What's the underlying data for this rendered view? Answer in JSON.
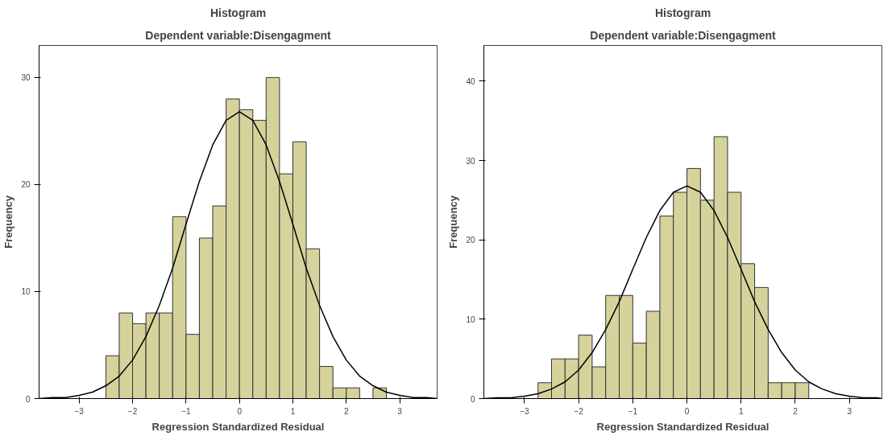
{
  "chart_data": [
    {
      "type": "histogram",
      "title": "Histogram",
      "subtitle": "Dependent variable:Disengagment",
      "xlabel": "Regression Standardized Residual",
      "ylabel": "Frequency",
      "color": "#d6d29c",
      "bins": [
        -2.5,
        -2.25,
        -2.0,
        -1.75,
        -1.5,
        -1.25,
        -1.0,
        -0.75,
        -0.5,
        -0.25,
        0.0,
        0.25,
        0.5,
        0.75,
        1.0,
        1.25,
        1.5,
        1.75,
        2.0,
        2.25,
        2.5,
        2.75
      ],
      "values": [
        4,
        8,
        7,
        8,
        8,
        17,
        6,
        15,
        18,
        28,
        27,
        26,
        30,
        21,
        24,
        14,
        3,
        1,
        1,
        0,
        1
      ],
      "series": [
        {
          "type": "line",
          "color": "#000000",
          "x": [
            -3.75,
            -3.5,
            -3.25,
            -3.0,
            -2.75,
            -2.5,
            -2.25,
            -2.0,
            -1.75,
            -1.5,
            -1.25,
            -1.0,
            -0.75,
            -0.5,
            -0.25,
            0.0,
            0.25,
            0.5,
            0.75,
            1.0,
            1.25,
            1.5,
            1.75,
            2.0,
            2.25,
            2.5,
            2.75,
            3.0,
            3.25,
            3.5,
            3.7
          ],
          "values": [
            0.0,
            0.1,
            0.1,
            0.3,
            0.6,
            1.2,
            2.1,
            3.6,
            5.8,
            8.7,
            12.2,
            16.3,
            20.3,
            23.7,
            26.0,
            26.8,
            26.0,
            23.7,
            20.3,
            16.3,
            12.2,
            8.7,
            5.8,
            3.6,
            2.1,
            1.2,
            0.6,
            0.3,
            0.1,
            0.1,
            0.0
          ]
        }
      ],
      "xlim": [
        -3.75,
        3.7
      ],
      "ylim": [
        0,
        33
      ],
      "xticks": [
        -3,
        -2,
        -1,
        0,
        1,
        2,
        3
      ],
      "yticks": [
        0,
        10,
        20,
        30
      ],
      "grid": false
    },
    {
      "type": "histogram",
      "title": "Histogram",
      "subtitle": "Dependent variable:Disengagment",
      "xlabel": "Regression Standardized Residual",
      "ylabel": "Frequency",
      "color": "#d6d29c",
      "bins": [
        -2.75,
        -2.5,
        -2.25,
        -2.0,
        -1.75,
        -1.5,
        -1.25,
        -1.0,
        -0.75,
        -0.5,
        -0.25,
        0.0,
        0.25,
        0.5,
        0.75,
        1.0,
        1.25,
        1.5,
        1.75,
        2.0,
        2.25
      ],
      "values": [
        2,
        5,
        5,
        8,
        4,
        13,
        13,
        7,
        11,
        23,
        26,
        29,
        25,
        33,
        26,
        17,
        14,
        2,
        2,
        2
      ],
      "series": [
        {
          "type": "line",
          "color": "#000000",
          "x": [
            -3.75,
            -3.5,
            -3.25,
            -3.0,
            -2.75,
            -2.5,
            -2.25,
            -2.0,
            -1.75,
            -1.5,
            -1.25,
            -1.0,
            -0.75,
            -0.5,
            -0.25,
            0.0,
            0.25,
            0.5,
            0.75,
            1.0,
            1.25,
            1.5,
            1.75,
            2.0,
            2.25,
            2.5,
            2.75,
            3.0,
            3.25,
            3.5,
            3.6
          ],
          "values": [
            0.0,
            0.1,
            0.1,
            0.3,
            0.6,
            1.2,
            2.1,
            3.6,
            5.8,
            8.7,
            12.2,
            16.3,
            20.3,
            23.7,
            26.0,
            26.8,
            26.0,
            23.7,
            20.3,
            16.3,
            12.2,
            8.7,
            5.8,
            3.6,
            2.1,
            1.2,
            0.6,
            0.3,
            0.1,
            0.1,
            0.0
          ]
        }
      ],
      "xlim": [
        -3.75,
        3.6
      ],
      "ylim": [
        0,
        44.5
      ],
      "xticks": [
        -3,
        -2,
        -1,
        0,
        1,
        2,
        3
      ],
      "yticks": [
        0,
        10,
        20,
        30,
        40
      ],
      "grid": false
    }
  ]
}
